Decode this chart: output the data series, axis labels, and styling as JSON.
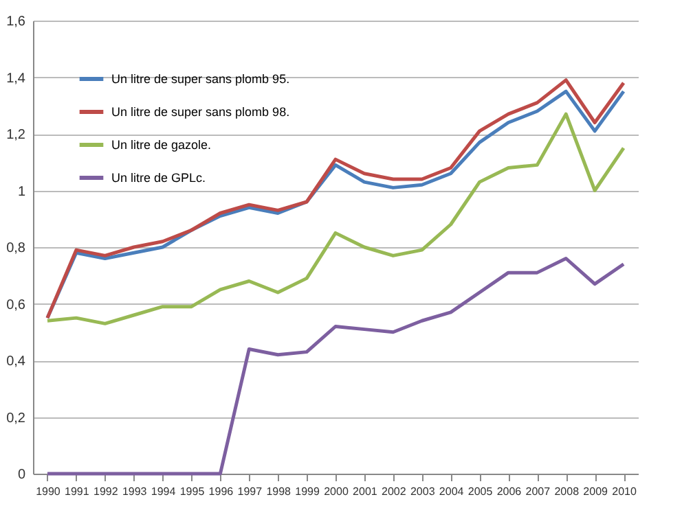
{
  "chart_data": {
    "type": "line",
    "categories": [
      "1990",
      "1991",
      "1992",
      "1993",
      "1994",
      "1995",
      "1996",
      "1997",
      "1998",
      "1999",
      "2000",
      "2001",
      "2002",
      "2003",
      "2004",
      "2005",
      "2006",
      "2007",
      "2008",
      "2009",
      "2010"
    ],
    "series": [
      {
        "name": "Un litre de super sans plomb 95.",
        "color": "#4a7ebb",
        "values": [
          0.55,
          0.78,
          0.76,
          0.78,
          0.8,
          0.86,
          0.91,
          0.94,
          0.92,
          0.96,
          1.09,
          1.03,
          1.01,
          1.02,
          1.06,
          1.17,
          1.24,
          1.28,
          1.35,
          1.21,
          1.35
        ]
      },
      {
        "name": "Un litre de super sans plomb 98.",
        "color": "#be4b48",
        "values": [
          0.55,
          0.79,
          0.77,
          0.8,
          0.82,
          0.86,
          0.92,
          0.95,
          0.93,
          0.96,
          1.11,
          1.06,
          1.04,
          1.04,
          1.08,
          1.21,
          1.27,
          1.31,
          1.39,
          1.24,
          1.38
        ]
      },
      {
        "name": "Un litre de gazole.",
        "color": "#98b954",
        "values": [
          0.54,
          0.55,
          0.53,
          0.56,
          0.59,
          0.59,
          0.65,
          0.68,
          0.64,
          0.69,
          0.85,
          0.8,
          0.77,
          0.79,
          0.88,
          1.03,
          1.08,
          1.09,
          1.27,
          1.0,
          1.15
        ]
      },
      {
        "name": "Un litre de GPLc.",
        "color": "#7d5fa0",
        "values": [
          0,
          0,
          0,
          0,
          0,
          0,
          0,
          0.44,
          0.42,
          0.43,
          0.52,
          0.51,
          0.5,
          0.54,
          0.57,
          0.64,
          0.71,
          0.71,
          0.76,
          0.67,
          0.74
        ]
      }
    ],
    "ylim": [
      0,
      1.6
    ],
    "yticks": [
      0,
      {
        "value": 0.2,
        "label": "0,2"
      },
      {
        "value": 0.4,
        "label": "0,4"
      },
      {
        "value": 0.6,
        "label": "0,6"
      },
      {
        "value": 0.8,
        "label": "0,8"
      },
      1,
      {
        "value": 1.2,
        "label": "1,2"
      },
      {
        "value": 1.4,
        "label": "1,4"
      },
      {
        "value": 1.6,
        "label": "1,6"
      }
    ],
    "grid": "y",
    "legend": "top left",
    "marker": "none",
    "line_style": "solid"
  }
}
